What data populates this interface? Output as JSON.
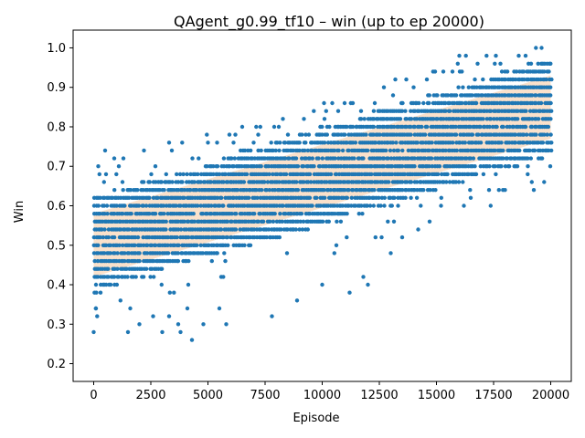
{
  "chart_data": {
    "type": "scatter",
    "title": "QAgent_g0.99_tf10 – win (up to ep 20000)",
    "xlabel": "Episode",
    "ylabel": "Win",
    "xlim": [
      -900,
      20900
    ],
    "ylim": [
      0.155,
      1.045
    ],
    "xticks": [
      0,
      2500,
      5000,
      7500,
      10000,
      12500,
      15000,
      17500,
      20000
    ],
    "yticks": [
      0.2,
      0.3,
      0.4,
      0.5,
      0.6,
      0.7,
      0.8,
      0.9,
      1.0
    ],
    "grid": false,
    "legend": "none",
    "point_color": "#1f77b4",
    "trend_color": "#f5c9a0",
    "series": [
      {
        "values_note": "win rate sampled every episode; dense band rising from ~0.50 at ep 0 to ~0.85 at ep 20000",
        "points": [
          [
            0,
            0.28
          ],
          [
            100,
            0.34
          ],
          [
            150,
            0.32
          ],
          [
            200,
            0.7
          ],
          [
            250,
            0.68
          ],
          [
            500,
            0.74
          ],
          [
            900,
            0.72
          ],
          [
            1100,
            0.7
          ],
          [
            1300,
            0.72
          ],
          [
            1500,
            0.28
          ],
          [
            1600,
            0.34
          ],
          [
            2000,
            0.3
          ],
          [
            2200,
            0.74
          ],
          [
            2600,
            0.32
          ],
          [
            3000,
            0.28
          ],
          [
            3300,
            0.76
          ],
          [
            3300,
            0.32
          ],
          [
            3700,
            0.3
          ],
          [
            3800,
            0.28
          ],
          [
            4100,
            0.34
          ],
          [
            4300,
            0.26
          ],
          [
            4800,
            0.3
          ],
          [
            5000,
            0.76
          ],
          [
            5500,
            0.34
          ],
          [
            5800,
            0.3
          ],
          [
            6200,
            0.78
          ],
          [
            6500,
            0.8
          ],
          [
            7000,
            0.76
          ],
          [
            7200,
            0.78
          ],
          [
            7800,
            0.32
          ],
          [
            7900,
            0.8
          ],
          [
            8500,
            0.78
          ],
          [
            8900,
            0.36
          ],
          [
            9200,
            0.82
          ],
          [
            10000,
            0.4
          ],
          [
            10100,
            0.82
          ],
          [
            10700,
            0.84
          ],
          [
            11200,
            0.38
          ],
          [
            11700,
            0.84
          ],
          [
            11800,
            0.42
          ],
          [
            12000,
            0.4
          ],
          [
            12300,
            0.86
          ],
          [
            12700,
            0.9
          ],
          [
            13000,
            0.48
          ],
          [
            13100,
            0.88
          ],
          [
            13200,
            0.92
          ],
          [
            13500,
            0.52
          ],
          [
            14000,
            0.9
          ],
          [
            14200,
            0.54
          ],
          [
            14700,
            0.56
          ],
          [
            15200,
            0.6
          ],
          [
            15700,
            0.94
          ],
          [
            16000,
            0.98
          ],
          [
            16500,
            0.62
          ],
          [
            16800,
            0.96
          ],
          [
            17300,
            0.64
          ],
          [
            17600,
            0.98
          ],
          [
            17800,
            0.96
          ],
          [
            18000,
            0.64
          ],
          [
            18400,
            0.72
          ],
          [
            18600,
            0.98
          ],
          [
            19000,
            0.7
          ],
          [
            19300,
            0.74
          ],
          [
            19600,
            1.0
          ],
          [
            19800,
            0.74
          ],
          [
            20000,
            0.76
          ]
        ]
      }
    ]
  }
}
